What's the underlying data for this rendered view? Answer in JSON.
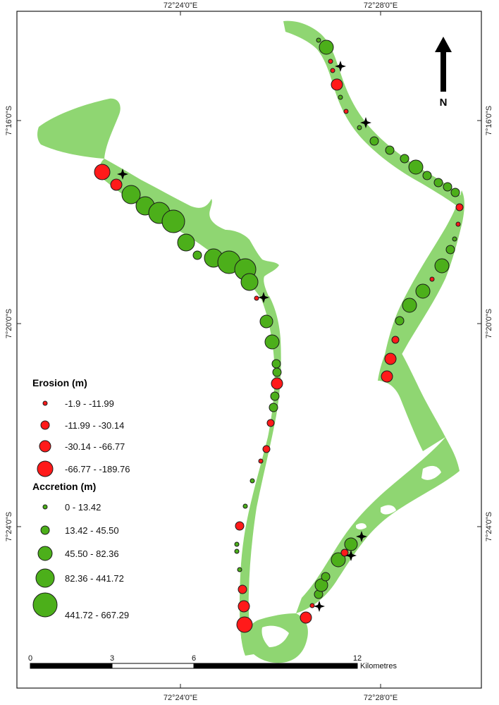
{
  "map": {
    "graticule": {
      "top": [
        "72°24'0\"E",
        "72°28'0\"E"
      ],
      "bottom": [
        "72°24'0\"E",
        "72°28'0\"E"
      ],
      "left": [
        "7°16'0\"S",
        "7°20'0\"S",
        "7°24'0\"S"
      ],
      "right": [
        "7°16'0\"S",
        "7°20'0\"S",
        "7°24'0\"S"
      ]
    },
    "north_label": "N",
    "legend": {
      "erosion_title": "Erosion (m)",
      "erosion_classes": [
        "-1.9 - -11.99",
        "-11.99 - -30.14",
        "-30.14 - -66.77",
        "-66.77 - -189.76"
      ],
      "accretion_title": "Accretion (m)",
      "accretion_classes": [
        "0 - 13.42",
        "13.42 - 45.50",
        "45.50 - 82.36",
        "82.36 - 441.72",
        "441.72 - 667.29"
      ]
    },
    "scale_bar": {
      "ticks": [
        "0",
        "3",
        "6",
        "12"
      ],
      "unit": "Kilometres"
    },
    "colors": {
      "land": "#8fd672",
      "erosion": "#ff1a1a",
      "accretion": "#4caf1a",
      "outline": "#1a1a1a"
    }
  }
}
